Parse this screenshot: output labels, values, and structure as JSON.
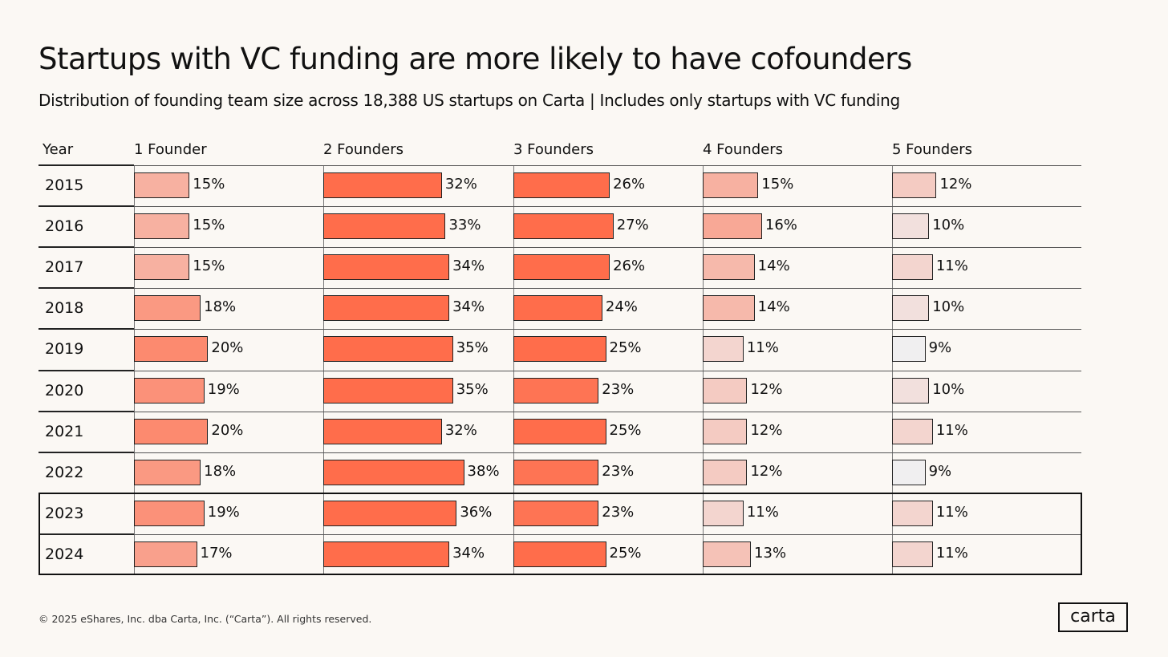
{
  "chart_data": {
    "type": "bar",
    "title": "Startups with VC funding are more likely to have cofounders",
    "subtitle": "Distribution of founding team size across 18,388 US startups on Carta | Includes only startups with VC funding",
    "row_header": "Year",
    "categories": [
      "2015",
      "2016",
      "2017",
      "2018",
      "2019",
      "2020",
      "2021",
      "2022",
      "2023",
      "2024"
    ],
    "highlighted_rows": [
      "2023",
      "2024"
    ],
    "unit": "%",
    "series": [
      {
        "name": "1 Founder",
        "values": [
          15,
          15,
          15,
          18,
          20,
          19,
          20,
          18,
          19,
          17
        ]
      },
      {
        "name": "2 Founders",
        "values": [
          32,
          33,
          34,
          34,
          35,
          35,
          32,
          38,
          36,
          34
        ]
      },
      {
        "name": "3 Founders",
        "values": [
          26,
          27,
          26,
          24,
          25,
          23,
          25,
          23,
          23,
          25
        ]
      },
      {
        "name": "4 Founders",
        "values": [
          15,
          16,
          14,
          14,
          11,
          12,
          12,
          12,
          11,
          13
        ]
      },
      {
        "name": "5 Founders",
        "values": [
          12,
          10,
          11,
          10,
          9,
          10,
          11,
          9,
          11,
          11
        ]
      }
    ],
    "color_low": "#f0eff0",
    "color_high": "#ff6d4b"
  },
  "footer": "© 2025 eShares, Inc. dba Carta, Inc. (“Carta”). All rights reserved.",
  "logo": "carta"
}
